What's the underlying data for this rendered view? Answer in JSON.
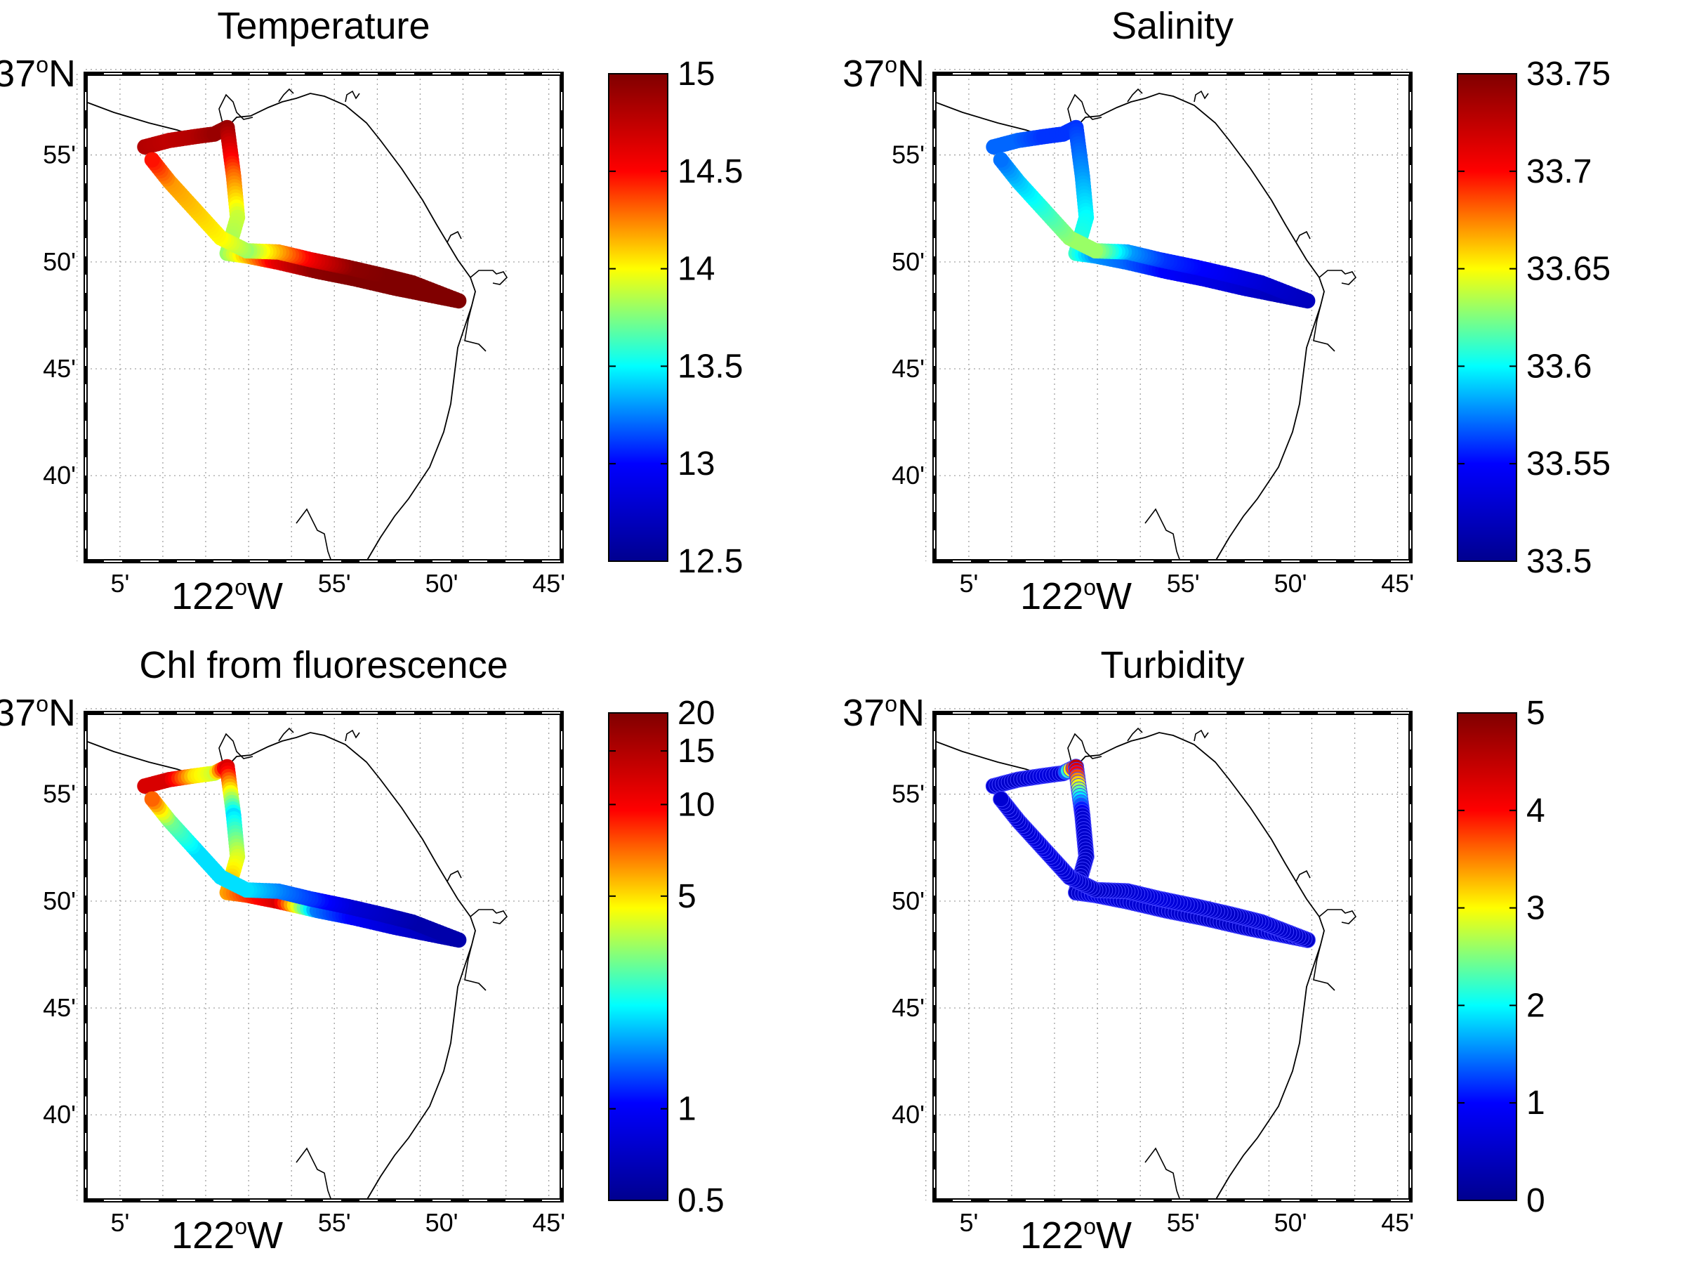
{
  "colormap": "jet",
  "colormap_stops": [
    "#00008f",
    "#0000ff",
    "#00ffff",
    "#ffff00",
    "#ff0000",
    "#800000"
  ],
  "coast_color": "#000000",
  "grid": "dotted",
  "map": {
    "lon_range": [
      -122.11,
      -121.74
    ],
    "lat_range": [
      36.6,
      36.98
    ],
    "lat_ticks": [
      {
        "value": 36.9167,
        "label": "55'"
      },
      {
        "value": 36.8333,
        "label": "50'"
      },
      {
        "value": 36.75,
        "label": "45'"
      },
      {
        "value": 36.6667,
        "label": "40'"
      }
    ],
    "lon_ticks": [
      {
        "value": -122.0833,
        "label": "5'"
      },
      {
        "value": -121.9167,
        "label": "55'"
      },
      {
        "value": -121.8333,
        "label": "50'"
      },
      {
        "value": -121.75,
        "label": "45'"
      }
    ],
    "lon_grid": [
      -122.1167,
      -122.0833,
      -122.05,
      -122.0167,
      -121.9833,
      -121.95,
      -121.9167,
      -121.8833,
      -121.85,
      -121.8167,
      -121.7833,
      -121.75
    ],
    "lat_grid": [
      36.9833,
      36.9167,
      36.8333,
      36.75,
      36.6667
    ],
    "lat_main": {
      "deg": "37",
      "sup": "o",
      "hemi": "N"
    },
    "lon_main": {
      "deg": "122",
      "sup": "o",
      "hemi": "W"
    }
  },
  "panels": [
    {
      "key": "temperature",
      "title": "Temperature",
      "colorbar": {
        "ticks": [
          "15",
          "14.5",
          "14",
          "13.5",
          "13",
          "12.5"
        ]
      }
    },
    {
      "key": "salinity",
      "title": "Salinity",
      "colorbar": {
        "ticks": [
          "33.75",
          "33.7",
          "33.65",
          "33.6",
          "33.55",
          "33.5"
        ]
      }
    },
    {
      "key": "chl",
      "title": "Chl from fluorescence",
      "colorbar": {
        "ticks": [
          "20",
          "15",
          "10",
          "5",
          "1",
          "0.5"
        ],
        "scale": "log"
      }
    },
    {
      "key": "turbidity",
      "title": "Turbidity",
      "colorbar": {
        "ticks": [
          "5",
          "4",
          "3",
          "2",
          "1",
          "0"
        ]
      }
    }
  ],
  "chart_data": {
    "type": "scatter",
    "track": [
      [
        -122.064,
        36.923
      ],
      [
        -122.045,
        36.928
      ],
      [
        -122.025,
        36.931
      ],
      [
        -122.01,
        36.933
      ],
      [
        -122.0,
        36.938
      ],
      [
        -121.995,
        36.9
      ],
      [
        -121.992,
        36.868
      ],
      [
        -122.0,
        36.84
      ],
      [
        -121.985,
        36.838
      ],
      [
        -121.96,
        36.833
      ],
      [
        -121.93,
        36.826
      ],
      [
        -121.9,
        36.82
      ],
      [
        -121.87,
        36.813
      ],
      [
        -121.845,
        36.808
      ],
      [
        -121.82,
        36.803
      ],
      [
        -121.856,
        36.817
      ],
      [
        -121.88,
        36.823
      ],
      [
        -121.906,
        36.829
      ],
      [
        -121.935,
        36.835
      ],
      [
        -121.96,
        36.841
      ],
      [
        -121.985,
        36.842
      ],
      [
        -122.005,
        36.852
      ],
      [
        -122.025,
        36.874
      ],
      [
        -122.045,
        36.896
      ],
      [
        -122.06,
        36.915
      ]
    ],
    "series": [
      {
        "name": "Temperature",
        "range": [
          12.5,
          15
        ],
        "values": [
          14.8,
          14.75,
          14.8,
          14.9,
          14.9,
          14.3,
          13.9,
          13.8,
          14.1,
          14.6,
          14.95,
          15.0,
          15.0,
          15.0,
          15.0,
          15.0,
          15.0,
          14.95,
          14.6,
          14.2,
          13.8,
          14.0,
          14.1,
          14.2,
          14.5
        ]
      },
      {
        "name": "Salinity",
        "range": [
          33.5,
          33.75
        ],
        "values": [
          33.57,
          33.57,
          33.56,
          33.56,
          33.56,
          33.58,
          33.6,
          33.61,
          33.58,
          33.57,
          33.55,
          33.54,
          33.53,
          33.52,
          33.52,
          33.53,
          33.54,
          33.55,
          33.56,
          33.58,
          33.63,
          33.63,
          33.61,
          33.59,
          33.57
        ]
      },
      {
        "name": "Chl from fluorescence",
        "range": [
          0.5,
          20
        ],
        "values": [
          12,
          12,
          5,
          4,
          12,
          2,
          4,
          6,
          8,
          12,
          1.5,
          1,
          0.8,
          0.7,
          0.6,
          0.6,
          0.7,
          0.8,
          1.2,
          1.5,
          2,
          2,
          2,
          3,
          8
        ]
      },
      {
        "name": "Turbidity",
        "range": [
          0,
          5
        ],
        "values": [
          0.6,
          0.5,
          0.7,
          0.6,
          4.5,
          0.6,
          0.5,
          0.5,
          0.7,
          0.6,
          0.6,
          0.5,
          0.5,
          0.6,
          0.5,
          0.6,
          0.5,
          0.6,
          0.7,
          0.6,
          0.5,
          0.6,
          0.7,
          0.6,
          0.6
        ]
      }
    ]
  }
}
